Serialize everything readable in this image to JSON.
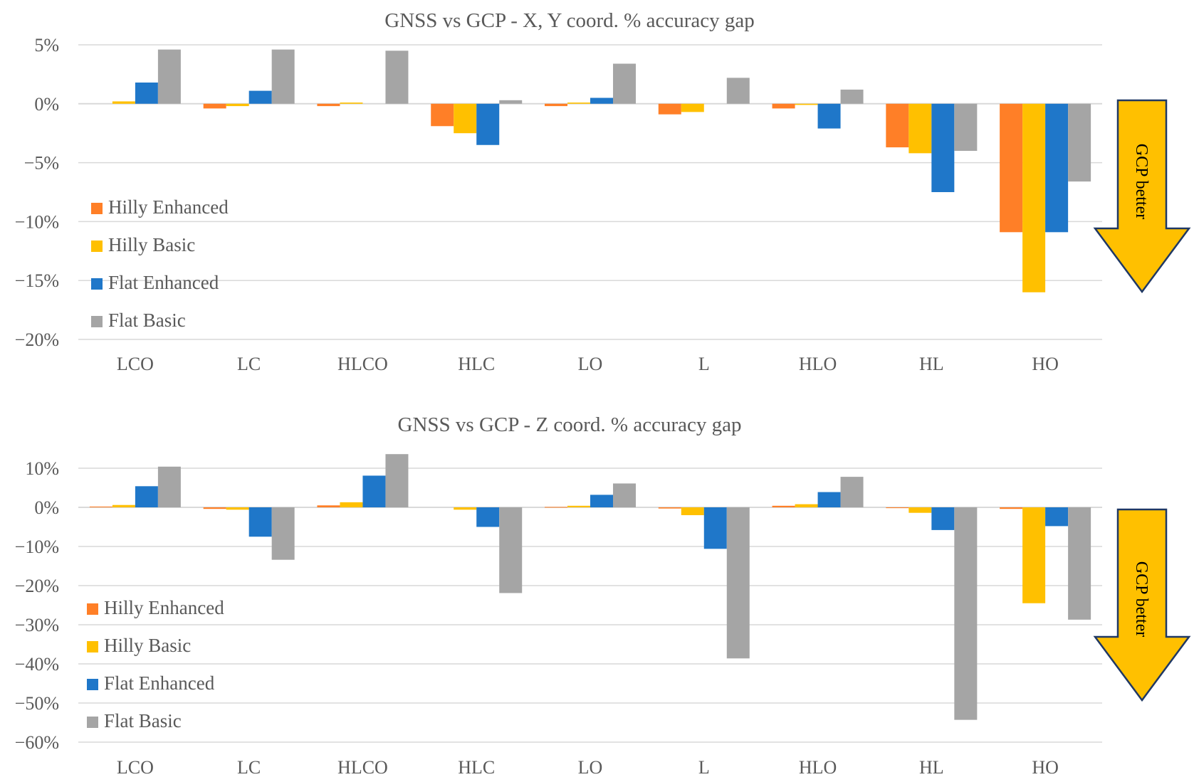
{
  "chart_data": [
    {
      "type": "bar",
      "title": "GNSS vs GCP - X, Y  coord. % accuracy gap",
      "categories": [
        "LCO",
        "LC",
        "HLCO",
        "HLC",
        "LO",
        "L",
        "HLO",
        "HL",
        "HO"
      ],
      "y_ticks": [
        "5%",
        "0%",
        "−5%",
        "−10%",
        "−15%",
        "−20%"
      ],
      "ylim": [
        -20,
        5
      ],
      "series": [
        {
          "name": "Hilly Enhanced",
          "values": [
            0.0,
            -0.4,
            -0.2,
            -1.9,
            -0.2,
            -0.9,
            -0.4,
            -3.7,
            -10.9
          ]
        },
        {
          "name": "Hilly Basic",
          "values": [
            0.2,
            -0.2,
            0.1,
            -2.5,
            0.1,
            -0.7,
            -0.1,
            -4.2,
            -16.0
          ]
        },
        {
          "name": "Flat Enhanced",
          "values": [
            1.8,
            1.1,
            0.0,
            -3.5,
            0.5,
            0.0,
            -2.1,
            -7.5,
            -10.9
          ]
        },
        {
          "name": "Flat Basic",
          "values": [
            4.6,
            4.6,
            4.5,
            0.3,
            3.4,
            2.2,
            1.2,
            -4.0,
            -6.6
          ]
        }
      ],
      "legend_position": "bottom-left",
      "annotation": "GCP better"
    },
    {
      "type": "bar",
      "title": "GNSS vs GCP - Z  coord. % accuracy gap",
      "categories": [
        "LCO",
        "LC",
        "HLCO",
        "HLC",
        "LO",
        "L",
        "HLO",
        "HL",
        "HO"
      ],
      "y_ticks": [
        "10%",
        "0%",
        "−10%",
        "−20%",
        "−30%",
        "−40%",
        "−50%",
        "−60%"
      ],
      "ylim": [
        -60,
        10
      ],
      "series": [
        {
          "name": "Hilly Enhanced",
          "values": [
            0.2,
            -0.4,
            0.5,
            0.0,
            0.1,
            -0.3,
            0.4,
            -0.2,
            -0.4
          ]
        },
        {
          "name": "Hilly Basic",
          "values": [
            0.6,
            -0.6,
            1.3,
            -0.6,
            0.4,
            -2.0,
            0.8,
            -1.4,
            -24.5
          ]
        },
        {
          "name": "Flat Enhanced",
          "values": [
            5.4,
            -7.5,
            8.1,
            -5.0,
            3.2,
            -10.6,
            3.9,
            -5.8,
            -4.8
          ]
        },
        {
          "name": "Flat Basic",
          "values": [
            10.4,
            -13.4,
            13.6,
            -21.9,
            6.1,
            -38.6,
            7.8,
            -54.3,
            -28.7
          ]
        }
      ],
      "legend_position": "bottom-left",
      "annotation": "GCP better"
    }
  ],
  "colors": {
    "series": [
      "#FF7F27",
      "#FFC000",
      "#1F77C9",
      "#A5A5A5"
    ],
    "arrow_fill": "#FFC000",
    "arrow_stroke": "#1F3864",
    "grid": "#D9D9D9",
    "text": "#595959"
  }
}
